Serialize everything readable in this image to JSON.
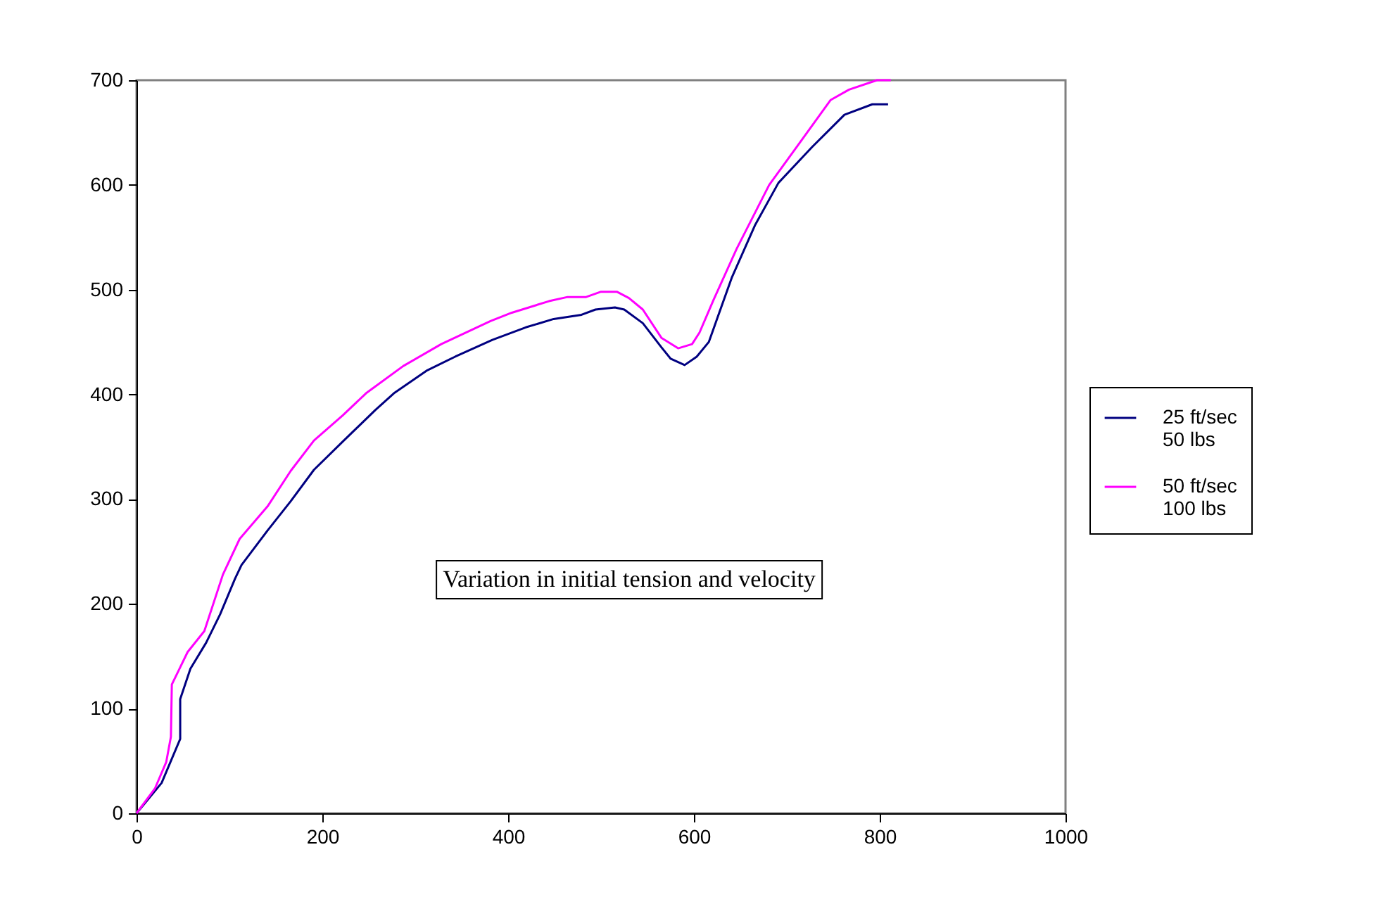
{
  "chart_data": {
    "type": "line",
    "xlim": [
      0,
      1000
    ],
    "ylim": [
      0,
      700
    ],
    "xticks": [
      0,
      200,
      400,
      600,
      800,
      1000
    ],
    "yticks": [
      0,
      100,
      200,
      300,
      400,
      500,
      600,
      700
    ],
    "grid": false,
    "legend": "right",
    "marker": "none",
    "line_style": "solid",
    "annotations": [
      "Variation in initial tension and velocity"
    ],
    "series": [
      {
        "name": "25 ft/sec\n50 lbs",
        "color": "#000080",
        "x": [
          0,
          27,
          47,
          47,
          58,
          75,
          90,
          106,
          113,
          141,
          166,
          191,
          222,
          257,
          277,
          313,
          343,
          383,
          419,
          449,
          479,
          494,
          515,
          525,
          545,
          565,
          575,
          590,
          603,
          616,
          641,
          666,
          691,
          727,
          762,
          792,
          809
        ],
        "values": [
          0,
          29,
          71,
          109,
          138,
          163,
          190,
          224,
          237,
          270,
          298,
          328,
          355,
          385,
          401,
          423,
          436,
          452,
          464,
          472,
          476,
          481,
          483,
          481,
          468,
          445,
          434,
          428,
          436,
          450,
          512,
          562,
          602,
          636,
          667,
          677,
          677
        ]
      },
      {
        "name": "50 ft/sec\n100 lbs",
        "color": "#ff00ff",
        "x": [
          0,
          20,
          32,
          37,
          38,
          55,
          73,
          93,
          111,
          141,
          166,
          191,
          222,
          247,
          287,
          328,
          381,
          404,
          444,
          464,
          484,
          500,
          517,
          530,
          545,
          565,
          583,
          598,
          606,
          621,
          646,
          681,
          712,
          747,
          767,
          797,
          812
        ],
        "values": [
          0,
          24,
          49,
          73,
          123,
          154,
          174,
          228,
          262,
          293,
          327,
          356,
          380,
          401,
          427,
          448,
          470,
          478,
          489,
          493,
          493,
          498,
          498,
          492,
          481,
          454,
          444,
          448,
          459,
          490,
          539,
          600,
          638,
          681,
          691,
          700,
          700
        ]
      }
    ]
  }
}
